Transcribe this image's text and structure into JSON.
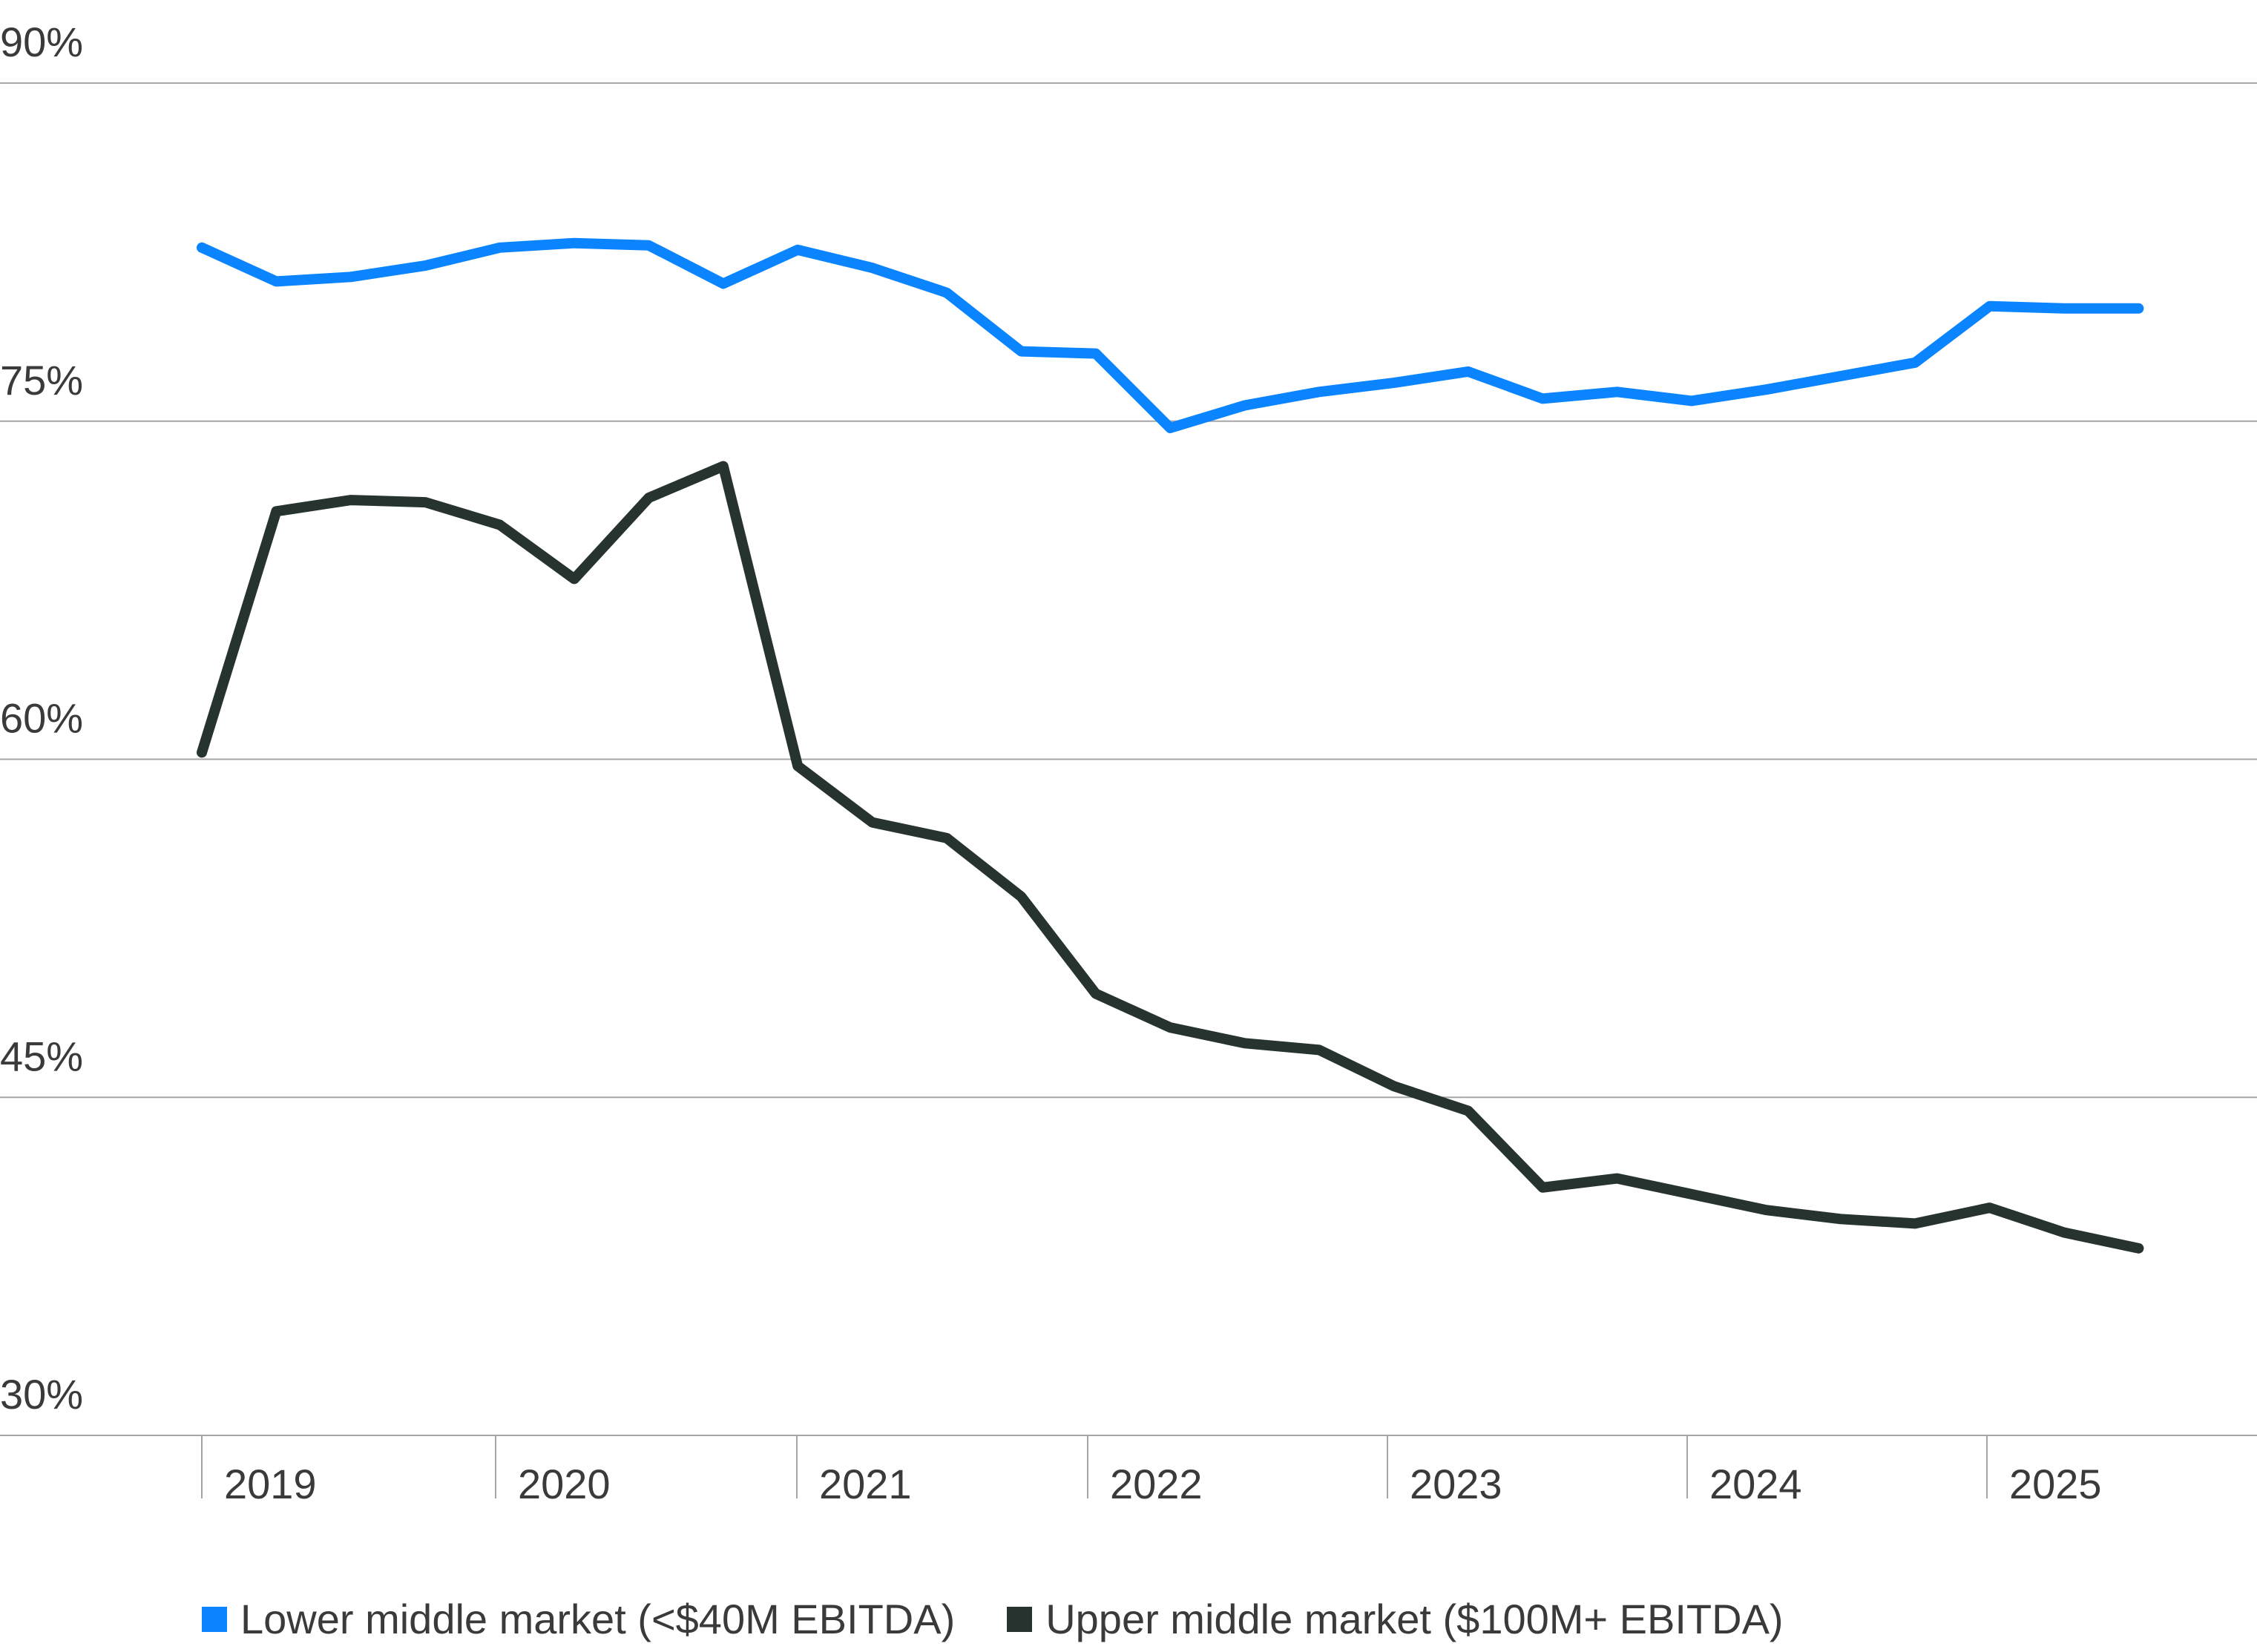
{
  "colors": {
    "lower": "#0a84ff",
    "upper": "#26332f",
    "grid": "#a6a6a6",
    "text": "#3a3a3a"
  },
  "chart_data": {
    "type": "line",
    "title": "",
    "xlabel": "",
    "ylabel": "",
    "ylim": [
      30,
      90
    ],
    "y_ticks": [
      "30%",
      "45%",
      "60%",
      "75%",
      "90%"
    ],
    "y_tick_values": [
      30,
      45,
      60,
      75,
      90
    ],
    "x_tick_labels": [
      "2019",
      "2020",
      "2021",
      "2022",
      "2023",
      "2024",
      "2025"
    ],
    "grid": true,
    "legend_position": "bottom",
    "x": [
      1,
      2,
      3,
      4,
      5,
      6,
      7,
      8,
      9,
      10,
      11,
      12,
      13,
      14,
      15,
      16,
      17,
      18,
      19,
      20,
      21,
      22,
      23,
      24,
      25,
      26,
      27
    ],
    "series": [
      {
        "name": "Lower middle market (<$40M EBITDA)",
        "color": "#0a84ff",
        "values": [
          82.7,
          81.2,
          81.4,
          81.9,
          82.7,
          82.9,
          82.8,
          81.1,
          82.6,
          81.8,
          80.7,
          78.1,
          78.0,
          74.7,
          75.7,
          76.3,
          76.7,
          77.2,
          76.0,
          76.3,
          75.9,
          76.4,
          77.0,
          77.6,
          80.1,
          80.0,
          80.0
        ]
      },
      {
        "name": "Upper middle market ($100M+ EBITDA)",
        "color": "#26332f",
        "values": [
          60.3,
          71.0,
          71.5,
          71.4,
          70.4,
          68.0,
          71.6,
          73.0,
          59.7,
          57.2,
          56.5,
          53.9,
          49.6,
          48.1,
          47.4,
          47.1,
          45.5,
          44.4,
          41.0,
          41.4,
          40.7,
          40.0,
          39.6,
          39.4,
          40.1,
          39.0,
          38.3
        ]
      }
    ]
  }
}
